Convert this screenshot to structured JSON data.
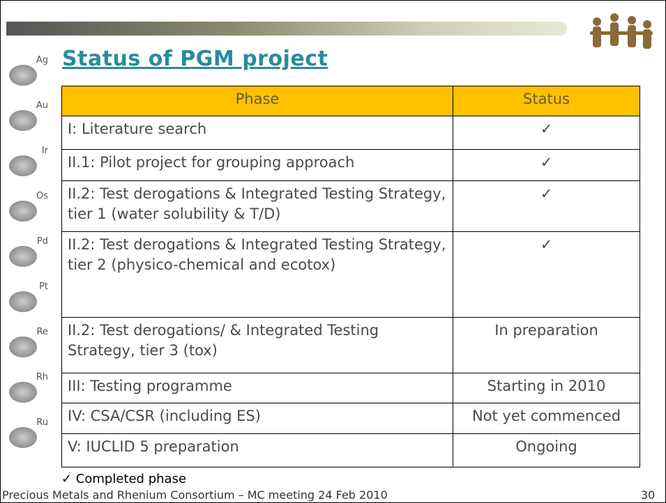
{
  "header": {
    "title": "Status of PGM project"
  },
  "sidebar": {
    "elements": [
      "Ag",
      "Au",
      "Ir",
      "Os",
      "Pd",
      "Pt",
      "Re",
      "Rh",
      "Ru"
    ]
  },
  "table": {
    "columns": [
      "Phase",
      "Status"
    ],
    "rows": [
      [
        "I: Literature search",
        "✓"
      ],
      [
        "II.1:  Pilot project for grouping approach",
        "✓"
      ],
      [
        "II.2: Test derogations & Integrated Testing Strategy, tier 1 (water solubility & T/D)",
        "✓"
      ],
      [
        "II.2: Test derogations & Integrated Testing Strategy, tier 2 (physico-chemical and ecotox)",
        "✓"
      ],
      [
        "II.2: Test derogations/ & Integrated Testing Strategy, tier 3 (tox)",
        "In preparation"
      ],
      [
        "III: Testing programme",
        "Starting in 2010"
      ],
      [
        "IV: CSA/CSR (including ES)",
        "Not yet commenced"
      ],
      [
        "V: IUCLID 5 preparation",
        "Ongoing"
      ]
    ]
  },
  "footnote": "✓ Completed phase",
  "footer": {
    "text": "Precious Metals and Rhenium Consortium – MC meeting 24 Feb 2010",
    "page": "30"
  }
}
